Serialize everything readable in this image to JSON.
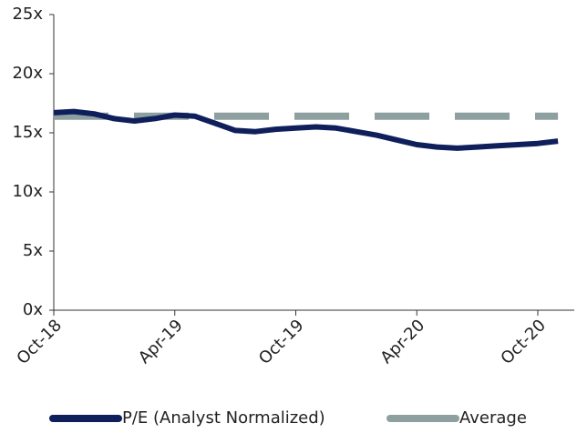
{
  "chart_data": {
    "type": "line",
    "categories": [
      "Oct-18",
      null,
      null,
      null,
      null,
      null,
      "Apr-19",
      null,
      null,
      null,
      null,
      null,
      "Oct-19",
      null,
      null,
      null,
      null,
      null,
      "Apr-20",
      null,
      null,
      null,
      null,
      null,
      "Oct-20",
      null
    ],
    "series": [
      {
        "name": "P/E (Analyst Normalized)",
        "color": "#0e1f5b",
        "values": [
          16.7,
          16.8,
          16.6,
          16.2,
          16.0,
          16.2,
          16.5,
          16.4,
          15.8,
          15.2,
          15.1,
          15.3,
          15.4,
          15.5,
          15.4,
          15.1,
          14.8,
          14.4,
          14.0,
          13.8,
          13.7,
          13.8,
          13.9,
          14.0,
          14.1,
          14.3
        ]
      },
      {
        "name": "Average",
        "color": "#8e9fa0",
        "dashed": true,
        "values": [
          16.4,
          16.4,
          16.4,
          16.4,
          16.4,
          16.4,
          16.4,
          16.4,
          16.4,
          16.4,
          16.4,
          16.4,
          16.4,
          16.4,
          16.4,
          16.4,
          16.4,
          16.4,
          16.4,
          16.4,
          16.4,
          16.4,
          16.4,
          16.4,
          16.4,
          16.4
        ]
      }
    ],
    "ylim": [
      0,
      25
    ],
    "yticks": [
      {
        "value": 0,
        "label": "0x"
      },
      {
        "value": 5,
        "label": "5x"
      },
      {
        "value": 10,
        "label": "10x"
      },
      {
        "value": 15,
        "label": "15x"
      },
      {
        "value": 20,
        "label": "20x"
      },
      {
        "value": 25,
        "label": "25x"
      }
    ],
    "grid": false,
    "legend": "bottom"
  }
}
